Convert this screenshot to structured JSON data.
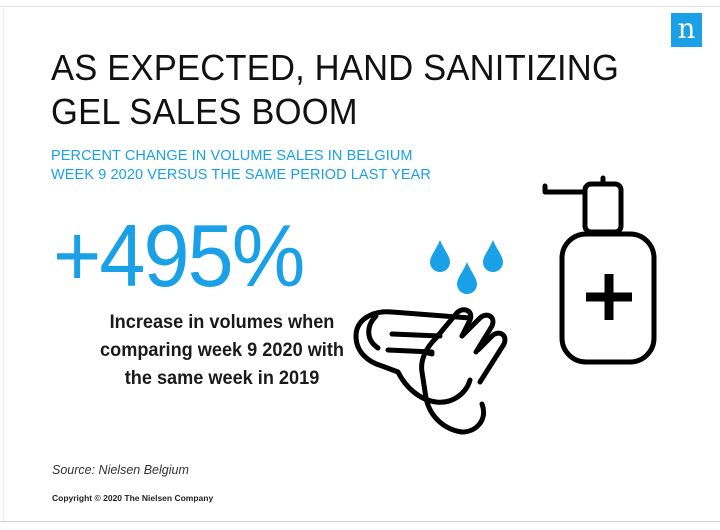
{
  "logo": {
    "letter": "n",
    "color": "#1aa0e6",
    "icon": "nielsen-logo-icon"
  },
  "title": {
    "line1": "AS EXPECTED, HAND SANITIZING",
    "line2": "GEL SALES BOOM"
  },
  "subtitle": {
    "line1": "PERCENT CHANGE IN VOLUME SALES IN BELGIUM",
    "line2": "WEEK 9 2020 VERSUS THE SAME PERIOD LAST YEAR"
  },
  "stat": {
    "value": "+495%",
    "description_lines": [
      "Increase in volumes when",
      "comparing week 9 2020 with",
      "the same week in 2019"
    ]
  },
  "source": "Source: Nielsen Belgium",
  "copyright": "Copyright © 2020 The Nielsen Company",
  "colors": {
    "accent": "#1aa0e6",
    "text": "#111111"
  },
  "icons": [
    "water-drops-icon",
    "washing-hands-icon",
    "sanitizer-bottle-icon"
  ]
}
